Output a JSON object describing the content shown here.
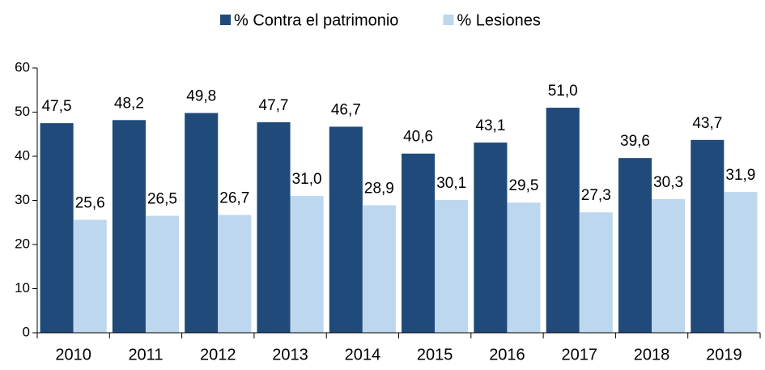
{
  "chart_data": {
    "type": "bar",
    "categories": [
      "2010",
      "2011",
      "2012",
      "2013",
      "2014",
      "2015",
      "2016",
      "2017",
      "2018",
      "2019"
    ],
    "series": [
      {
        "name": "% Contra el patrimonio",
        "color": "#1f4a7a",
        "values": [
          47.5,
          48.2,
          49.8,
          47.7,
          46.7,
          40.6,
          43.1,
          51.0,
          39.6,
          43.7
        ],
        "value_labels": [
          "47,5",
          "48,2",
          "49,8",
          "47,7",
          "46,7",
          "40,6",
          "43,1",
          "51,0",
          "39,6",
          "43,7"
        ]
      },
      {
        "name": "% Lesiones",
        "color": "#bdd7ee",
        "values": [
          25.6,
          26.5,
          26.7,
          31.0,
          28.9,
          30.1,
          29.5,
          27.3,
          30.3,
          31.9
        ],
        "value_labels": [
          "25,6",
          "26,5",
          "26,7",
          "31,0",
          "28,9",
          "30,1",
          "29,5",
          "27,3",
          "30,3",
          "31,9"
        ]
      }
    ],
    "ylim": [
      0,
      60
    ],
    "yticks": [
      0,
      10,
      20,
      30,
      40,
      50,
      60
    ],
    "grid": false,
    "legend": "top"
  }
}
